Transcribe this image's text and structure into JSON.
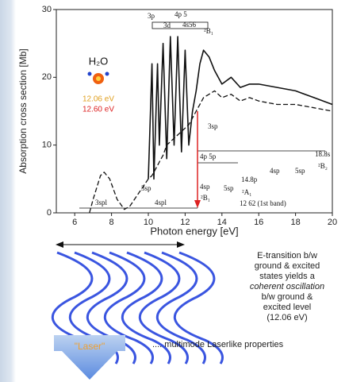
{
  "chart_data": {
    "type": "line",
    "x_label": "Photon energy [eV]",
    "y_label": "Absorption cross section [Mb]",
    "x": [
      6.8,
      7.0,
      7.4,
      7.6,
      7.9,
      8.3,
      8.7,
      9.0,
      9.5,
      10.0,
      10.2,
      10.3,
      10.5,
      10.6,
      10.8,
      11.0,
      11.2,
      11.4,
      11.6,
      11.8,
      12.0,
      12.2,
      12.4,
      12.6,
      12.8,
      13.0,
      13.3,
      13.6,
      14.0,
      14.5,
      15.0,
      15.5,
      16.0,
      17.0,
      18.0,
      19.0,
      20.0
    ],
    "series": [
      {
        "color": "#111111",
        "style": "dashed",
        "values": [
          0,
          2,
          5.5,
          6,
          5,
          2,
          0.5,
          1,
          3,
          5,
          5.5,
          6,
          7,
          7.5,
          8.5,
          10,
          10.5,
          11,
          11.5,
          12,
          12.5,
          13,
          14,
          15,
          16,
          17,
          17.5,
          18,
          17,
          17.5,
          16.5,
          17,
          16.5,
          16,
          16,
          15.5,
          15
        ]
      },
      {
        "color": "#111111",
        "style": "solid",
        "values": [
          null,
          null,
          null,
          null,
          null,
          null,
          null,
          null,
          null,
          5,
          22,
          5,
          22,
          10,
          25,
          8,
          26,
          10,
          26,
          9,
          24,
          10,
          15,
          18,
          22,
          24,
          23,
          21,
          19,
          20,
          18.5,
          19,
          19,
          18.5,
          18,
          17,
          16
        ]
      }
    ],
    "xlim": [
      5,
      20
    ],
    "ylim": [
      0,
      30
    ],
    "xticks": [
      6,
      8,
      10,
      12,
      14,
      16,
      18,
      20
    ],
    "yticks": [
      0,
      10,
      20,
      30
    ],
    "annotations": [
      "3p",
      "4p 5",
      "3d",
      "4s56",
      "²B₁",
      "3sp",
      "²B₂",
      "4sp",
      "5sp",
      "14.8p",
      "4p 5p",
      "²A₁",
      "3sp",
      "4sp",
      "5sp",
      "12 62 (1st band)",
      "3spl",
      "4spl",
      "²B₁",
      "18.8s"
    ]
  },
  "slide": {
    "molecule": "H₂O",
    "energy_1": "12.06 eV",
    "energy_2": "12.60 eV",
    "description": [
      "E-transition b/w",
      "ground & excited",
      "states yields a",
      "coherent oscillation",
      "b/w ground &",
      "excited level",
      "(12.06 eV)"
    ],
    "arrow_label": "\"Laser\"",
    "caption": ".... multimode Laserlike properties"
  }
}
